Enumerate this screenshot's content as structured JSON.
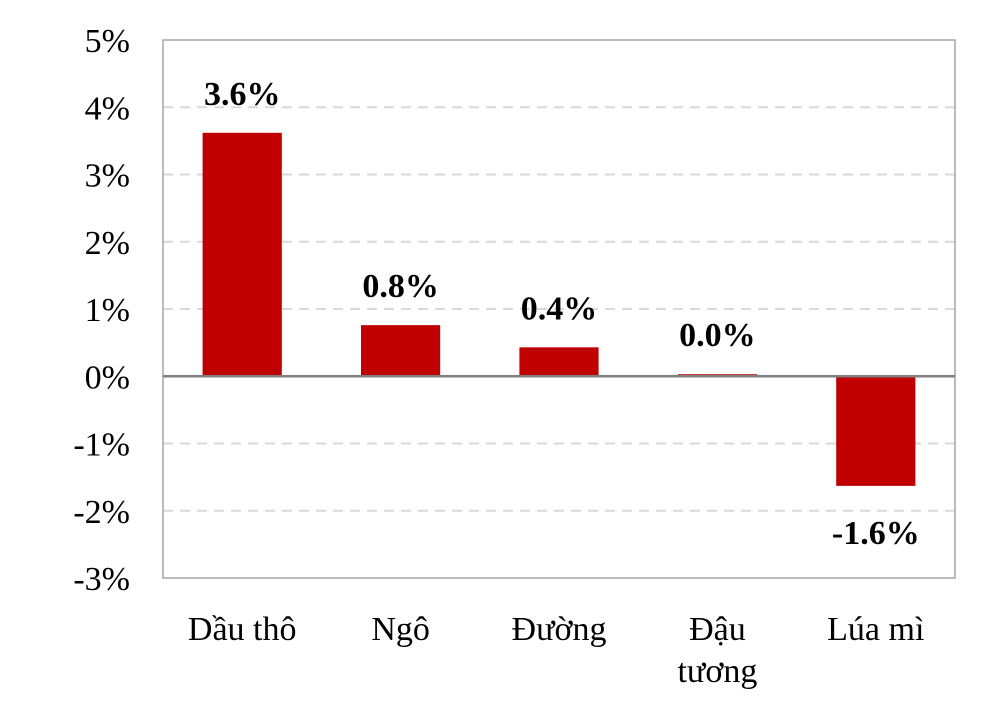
{
  "chart_data": {
    "type": "bar",
    "categories": [
      "Dầu thô",
      "Ngô",
      "Đường",
      "Đậu tương",
      "Lúa mì"
    ],
    "values": [
      3.62,
      0.76,
      0.43,
      0.03,
      -1.63
    ],
    "data_labels": [
      "3.6%",
      "0.8%",
      "0.4%",
      "0.0%",
      "-1.6%"
    ],
    "yticks": [
      5,
      4,
      3,
      2,
      1,
      0,
      -1,
      -2,
      -3
    ],
    "ytick_labels": [
      "5%",
      "4%",
      "3%",
      "2%",
      "1%",
      "0%",
      "-1%",
      "-2%",
      "-3%"
    ],
    "ylim": [
      -3,
      5
    ],
    "grid": true,
    "bar_color": "#c00000",
    "title": "",
    "xlabel": "",
    "ylabel": ""
  }
}
